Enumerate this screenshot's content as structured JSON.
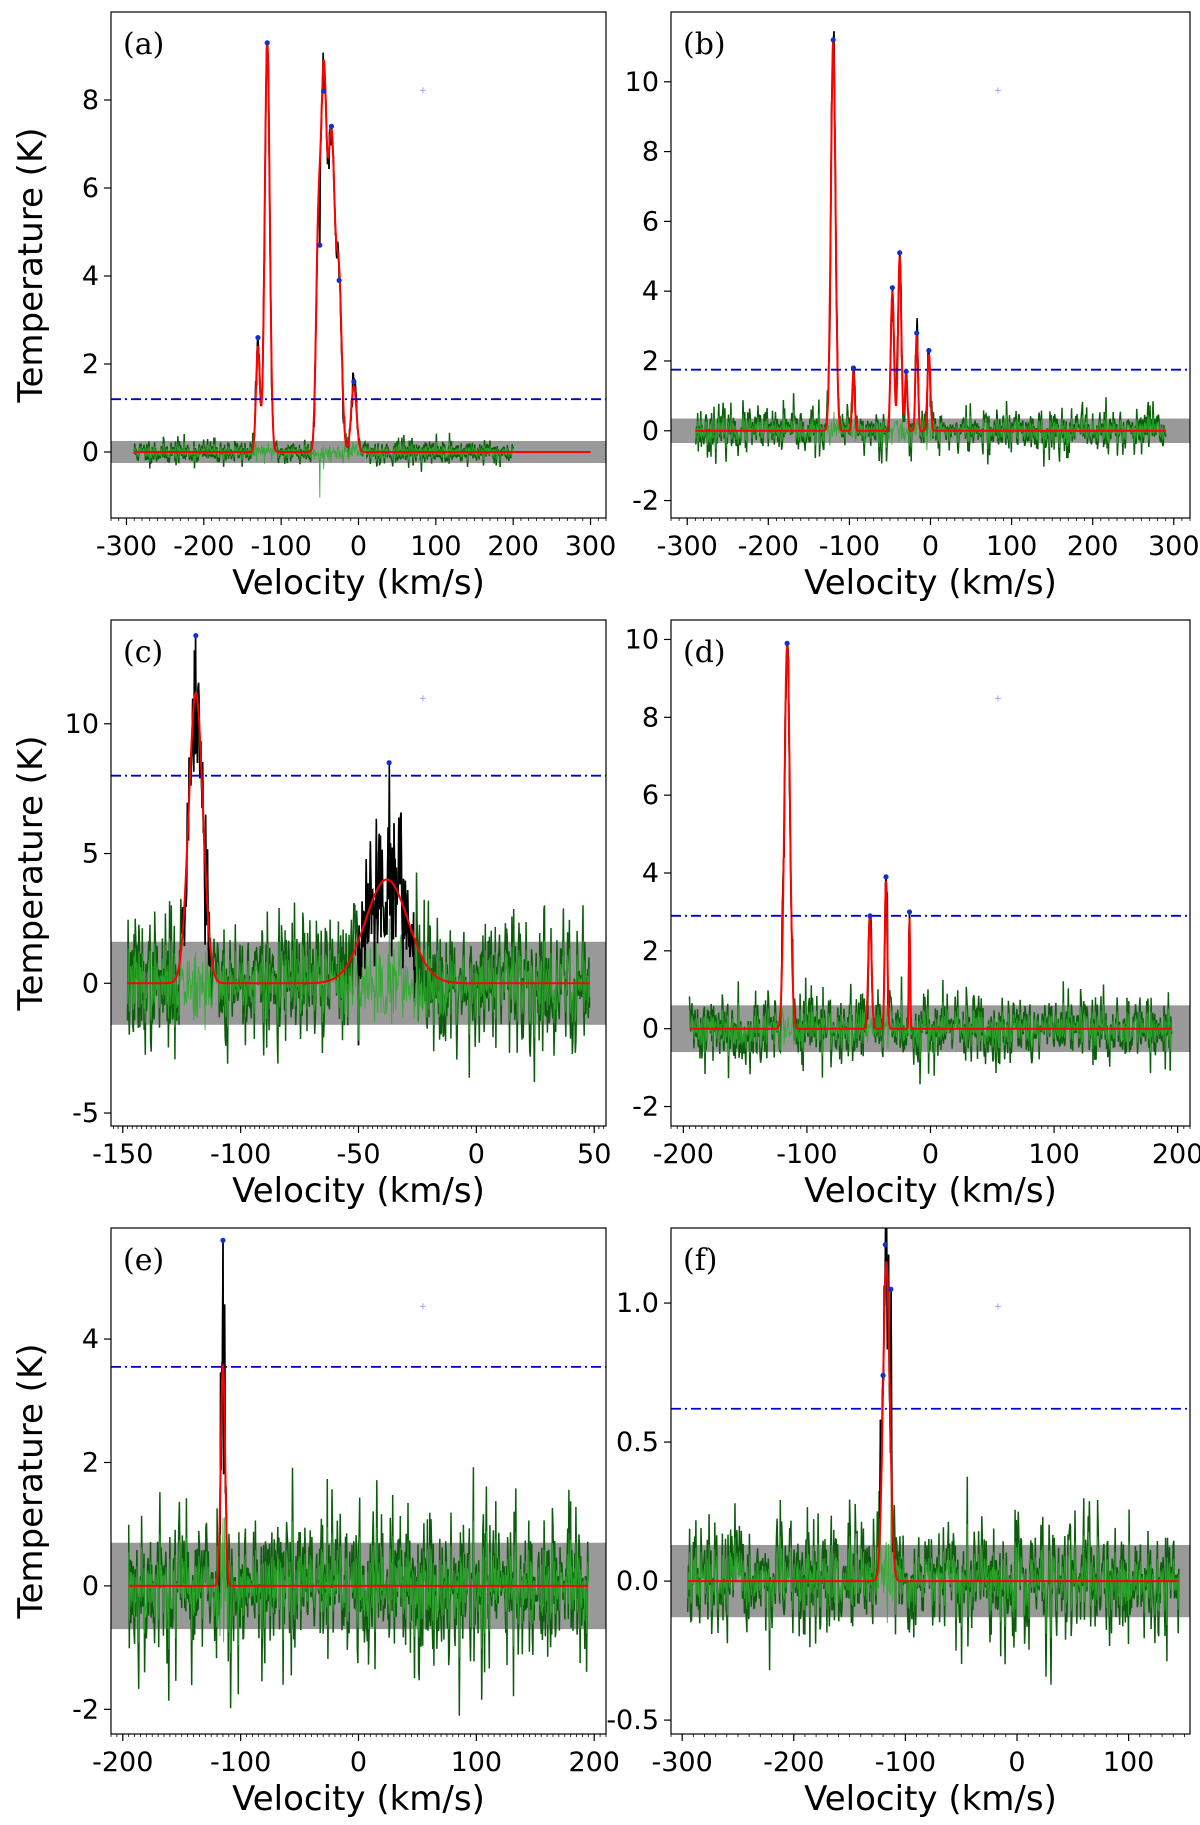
{
  "figure": {
    "type": "multi-panel spectra",
    "panel_count": 6
  },
  "chart_data": [
    {
      "id": "a",
      "label": "(a)",
      "type": "line",
      "xlabel": "Velocity (km/s)",
      "ylabel": "Temperature (K)",
      "xlim": [
        -320,
        320
      ],
      "ylim": [
        -1.5,
        10
      ],
      "xticks": [
        -300,
        -200,
        -100,
        0,
        100,
        200,
        300
      ],
      "xtick_labels": [
        "-300",
        "-200",
        "-100",
        "0",
        "100",
        "200",
        "300"
      ],
      "yticks": [
        0,
        2,
        4,
        6,
        8
      ],
      "ytick_labels": [
        "0",
        "2",
        "4",
        "6",
        "8"
      ],
      "noise_band": [
        -0.25,
        0.25
      ],
      "threshold": 1.2,
      "data_range": [
        -290,
        200
      ],
      "noise_sigma": 0.15,
      "seed": 11,
      "fit": {
        "x_range": [
          -290,
          300
        ],
        "components": [
          {
            "center": -130,
            "amp": 2.4,
            "sigma": 2.5
          },
          {
            "center": -118,
            "amp": 9.3,
            "sigma": 3.2
          },
          {
            "center": -52,
            "amp": 4.6,
            "sigma": 3.0
          },
          {
            "center": -45,
            "amp": 8.0,
            "sigma": 3.5
          },
          {
            "center": -35,
            "amp": 7.2,
            "sigma": 4.5
          },
          {
            "center": -25,
            "amp": 3.6,
            "sigma": 3.5
          },
          {
            "center": -6,
            "amp": 1.5,
            "sigma": 3.5
          }
        ]
      },
      "peaks": [
        {
          "x": -130,
          "y": 2.6
        },
        {
          "x": -118,
          "y": 9.3
        },
        {
          "x": -50,
          "y": 4.7
        },
        {
          "x": -45,
          "y": 8.2
        },
        {
          "x": -35,
          "y": 7.4
        },
        {
          "x": -25,
          "y": 3.9
        },
        {
          "x": -6,
          "y": 1.6
        }
      ]
    },
    {
      "id": "b",
      "label": "(b)",
      "type": "line",
      "xlabel": "Velocity (km/s)",
      "ylabel": "",
      "xlim": [
        -320,
        320
      ],
      "ylim": [
        -2.5,
        12
      ],
      "xticks": [
        -300,
        -200,
        -100,
        0,
        100,
        200,
        300
      ],
      "xtick_labels": [
        "-300",
        "-200",
        "-100",
        "0",
        "100",
        "200",
        "300"
      ],
      "yticks": [
        -2,
        0,
        2,
        4,
        6,
        8,
        10
      ],
      "ytick_labels": [
        "-2",
        "0",
        "2",
        "4",
        "6",
        "8",
        "10"
      ],
      "noise_band": [
        -0.35,
        0.35
      ],
      "threshold": 1.75,
      "data_range": [
        -290,
        290
      ],
      "noise_sigma": 0.35,
      "seed": 23,
      "fit": {
        "x_range": [
          -290,
          290
        ],
        "components": [
          {
            "center": -120,
            "amp": 11.2,
            "sigma": 2.8
          },
          {
            "center": -95,
            "amp": 1.7,
            "sigma": 1.5
          },
          {
            "center": -47,
            "amp": 4.0,
            "sigma": 2.0
          },
          {
            "center": -38,
            "amp": 5.0,
            "sigma": 2.0
          },
          {
            "center": -30,
            "amp": 1.7,
            "sigma": 1.5
          },
          {
            "center": -17,
            "amp": 2.8,
            "sigma": 1.5
          },
          {
            "center": -2,
            "amp": 2.2,
            "sigma": 1.8
          }
        ]
      },
      "peaks": [
        {
          "x": -120,
          "y": 11.2
        },
        {
          "x": -95,
          "y": 1.8
        },
        {
          "x": -47,
          "y": 4.1
        },
        {
          "x": -38,
          "y": 5.1
        },
        {
          "x": -30,
          "y": 1.7
        },
        {
          "x": -17,
          "y": 2.8
        },
        {
          "x": -2,
          "y": 2.3
        }
      ]
    },
    {
      "id": "c",
      "label": "(c)",
      "type": "line",
      "xlabel": "Velocity (km/s)",
      "ylabel": "Temperature (K)",
      "xlim": [
        -155,
        55
      ],
      "ylim": [
        -5.5,
        14
      ],
      "xticks": [
        -150,
        -100,
        -50,
        0,
        50
      ],
      "xtick_labels": [
        "-150",
        "-100",
        "-50",
        "0",
        "50"
      ],
      "yticks": [
        -5,
        0,
        5,
        10
      ],
      "ytick_labels": [
        "-5",
        "0",
        "5",
        "10"
      ],
      "noise_band": [
        -1.6,
        1.6
      ],
      "threshold": 8.0,
      "data_range": [
        -148,
        48
      ],
      "noise_sigma": 1.3,
      "seed": 37,
      "fit": {
        "x_range": [
          -148,
          48
        ],
        "components": [
          {
            "center": -119,
            "amp": 11.2,
            "sigma": 3.0
          },
          {
            "center": -38,
            "amp": 4.0,
            "sigma": 9.0
          }
        ]
      },
      "peaks": [
        {
          "x": -119,
          "y": 13.4
        },
        {
          "x": -37,
          "y": 8.5
        }
      ]
    },
    {
      "id": "d",
      "label": "(d)",
      "type": "line",
      "xlabel": "Velocity (km/s)",
      "ylabel": "",
      "xlim": [
        -210,
        210
      ],
      "ylim": [
        -2.5,
        10.5
      ],
      "xticks": [
        -200,
        -100,
        0,
        100,
        200
      ],
      "xtick_labels": [
        "-200",
        "-100",
        "0",
        "100",
        "200"
      ],
      "yticks": [
        -2,
        0,
        2,
        4,
        6,
        8,
        10
      ],
      "ytick_labels": [
        "-2",
        "0",
        "2",
        "4",
        "6",
        "8",
        "10"
      ],
      "noise_band": [
        -0.6,
        0.6
      ],
      "threshold": 2.9,
      "data_range": [
        -195,
        195
      ],
      "noise_sigma": 0.5,
      "seed": 41,
      "fit": {
        "x_range": [
          -195,
          195
        ],
        "components": [
          {
            "center": -116,
            "amp": 9.9,
            "sigma": 2.2
          },
          {
            "center": -49,
            "amp": 2.9,
            "sigma": 1.3
          },
          {
            "center": -36,
            "amp": 3.8,
            "sigma": 1.0
          },
          {
            "center": -17,
            "amp": 2.9,
            "sigma": 0.5
          }
        ]
      },
      "peaks": [
        {
          "x": -116,
          "y": 9.9
        },
        {
          "x": -49,
          "y": 2.9
        },
        {
          "x": -36,
          "y": 3.9
        },
        {
          "x": -17,
          "y": 3.0
        }
      ]
    },
    {
      "id": "e",
      "label": "(e)",
      "type": "line",
      "xlabel": "Velocity (km/s)",
      "ylabel": "Temperature (K)",
      "xlim": [
        -210,
        210
      ],
      "ylim": [
        -2.4,
        5.8
      ],
      "xticks": [
        -200,
        -100,
        0,
        100,
        200
      ],
      "xtick_labels": [
        "-200",
        "-100",
        "0",
        "100",
        "200"
      ],
      "yticks": [
        -2,
        0,
        2,
        4
      ],
      "ytick_labels": [
        "-2",
        "0",
        "2",
        "4"
      ],
      "noise_band": [
        -0.7,
        0.7
      ],
      "threshold": 3.55,
      "data_range": [
        -195,
        195
      ],
      "noise_sigma": 0.7,
      "seed": 53,
      "fit": {
        "x_range": [
          -195,
          195
        ],
        "components": [
          {
            "center": -115,
            "amp": 3.6,
            "sigma": 1.8
          }
        ]
      },
      "peaks": [
        {
          "x": -115,
          "y": 5.6
        }
      ]
    },
    {
      "id": "f",
      "label": "(f)",
      "type": "line",
      "xlabel": "Velocity (km/s)",
      "ylabel": "",
      "xlim": [
        -310,
        155
      ],
      "ylim": [
        -0.55,
        1.27
      ],
      "xticks": [
        -300,
        -200,
        -100,
        0,
        100
      ],
      "xtick_labels": [
        "-300",
        "-200",
        "-100",
        "0",
        "100"
      ],
      "yticks": [
        -0.5,
        0.0,
        0.5,
        1.0
      ],
      "ytick_labels": [
        "-0.5",
        "0.0",
        "0.5",
        "1.0"
      ],
      "noise_band": [
        -0.13,
        0.13
      ],
      "threshold": 0.62,
      "data_range": [
        -295,
        145
      ],
      "noise_sigma": 0.11,
      "seed": 67,
      "fit": {
        "x_range": [
          -295,
          145
        ],
        "components": [
          {
            "center": -117,
            "amp": 1.15,
            "sigma": 3.0
          }
        ]
      },
      "peaks": [
        {
          "x": -118,
          "y": 1.21
        },
        {
          "x": -113,
          "y": 1.05
        },
        {
          "x": -120,
          "y": 0.74
        }
      ]
    }
  ]
}
